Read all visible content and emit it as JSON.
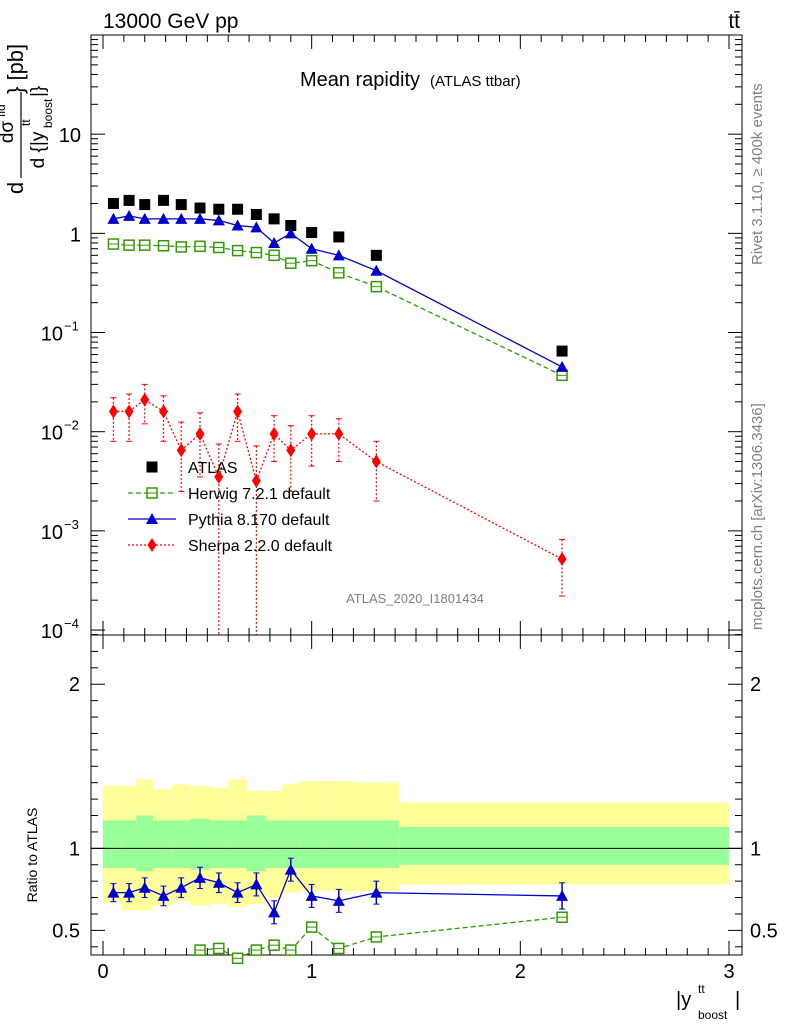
{
  "header": {
    "left": "13000 GeV pp",
    "right": "tt̄"
  },
  "side": {
    "top": "Rivet 3.1.10, ≥ 400k events",
    "bottom": "mcplots.cern.ch [arXiv:1306.3436]"
  },
  "chart_data": {
    "type": "scatter",
    "title": "Mean rapidity",
    "subtitle": "(ATLAS ttbar)",
    "analysis_id": "ATLAS_2020_I1801434",
    "xlabel": "|y_boost^tt|",
    "ylabel": "d dσ^fid / d{|y_boost^tt|} [pb]",
    "ratio_ylabel": "Ratio to ATLAS",
    "xlim": [
      -0.05,
      3.0
    ],
    "ylim": [
      7e-05,
      100
    ],
    "log_y": true,
    "ratio_ylim": [
      0.35,
      2.3
    ],
    "x_ticks": [
      "0",
      "1",
      "2",
      "3"
    ],
    "y_ticks": [
      "10^-4",
      "10^-3",
      "10^-2",
      "10^-1",
      "1",
      "10"
    ],
    "ratio_ticks": [
      "0.5",
      "1",
      "2"
    ],
    "legend_position": "lower-left",
    "x": [
      0.05,
      0.125,
      0.2,
      0.29,
      0.375,
      0.465,
      0.555,
      0.645,
      0.735,
      0.82,
      0.9,
      1.0,
      1.13,
      1.31,
      2.2
    ],
    "bin_edges": [
      0.0,
      0.09,
      0.16,
      0.24,
      0.33,
      0.42,
      0.51,
      0.6,
      0.69,
      0.78,
      0.86,
      0.94,
      1.06,
      1.2,
      1.42,
      3.0
    ],
    "ratio_band": {
      "stat_lo": [
        0.88,
        0.88,
        0.86,
        0.88,
        0.88,
        0.87,
        0.88,
        0.88,
        0.86,
        0.88,
        0.88,
        0.88,
        0.88,
        0.88,
        0.9
      ],
      "stat_hi": [
        1.17,
        1.17,
        1.2,
        1.17,
        1.17,
        1.18,
        1.17,
        1.17,
        1.2,
        1.17,
        1.17,
        1.17,
        1.17,
        1.17,
        1.13
      ],
      "total_lo": [
        0.67,
        0.62,
        0.62,
        0.65,
        0.68,
        0.65,
        0.66,
        0.64,
        0.66,
        0.7,
        0.73,
        0.74,
        0.74,
        0.74,
        0.78
      ],
      "total_hi": [
        1.38,
        1.38,
        1.42,
        1.36,
        1.39,
        1.38,
        1.37,
        1.42,
        1.35,
        1.35,
        1.39,
        1.41,
        1.41,
        1.4,
        1.28
      ]
    },
    "series": [
      {
        "name": "ATLAS",
        "color": "#000000",
        "marker": "square",
        "values": [
          2.0,
          2.15,
          1.95,
          2.15,
          1.95,
          1.8,
          1.75,
          1.75,
          1.55,
          1.4,
          1.2,
          1.02,
          0.92,
          0.6,
          0.065
        ]
      },
      {
        "name": "Herwig 7.2.1 default",
        "color": "#339900",
        "marker": "open-square",
        "line": "dashed",
        "values": [
          0.78,
          0.76,
          0.76,
          0.75,
          0.73,
          0.74,
          0.72,
          0.67,
          0.64,
          0.6,
          0.5,
          0.53,
          0.4,
          0.29,
          0.037
        ],
        "ratio": [
          null,
          null,
          null,
          null,
          null,
          0.38,
          0.39,
          0.33,
          0.38,
          0.41,
          0.38,
          0.52,
          0.39,
          0.46,
          0.58
        ],
        "ratio_err": [
          0,
          0,
          0,
          0,
          0,
          0.025,
          0.025,
          0.025,
          0.025,
          0.025,
          0.025,
          0.025,
          0.025,
          0.025,
          0.025
        ]
      },
      {
        "name": "Pythia 8.170 default",
        "color": "#0000cc",
        "marker": "triangle",
        "line": "solid",
        "values": [
          1.4,
          1.5,
          1.4,
          1.4,
          1.4,
          1.4,
          1.35,
          1.2,
          1.15,
          0.8,
          1.0,
          0.7,
          0.6,
          0.42,
          0.045
        ],
        "ratio": [
          0.73,
          0.73,
          0.76,
          0.71,
          0.76,
          0.82,
          0.79,
          0.73,
          0.78,
          0.61,
          0.87,
          0.71,
          0.68,
          0.73,
          0.71
        ],
        "ratio_err": [
          0.055,
          0.055,
          0.06,
          0.06,
          0.06,
          0.065,
          0.06,
          0.06,
          0.07,
          0.07,
          0.07,
          0.07,
          0.07,
          0.07,
          0.08
        ]
      },
      {
        "name": "Sherpa 2.2.0 default",
        "color": "#ff0000",
        "marker": "diamond",
        "line": "dotted",
        "values": [
          0.016,
          0.016,
          0.021,
          0.016,
          0.0065,
          0.0095,
          0.0035,
          0.016,
          0.0032,
          0.0095,
          0.0065,
          0.0095,
          0.0095,
          0.005,
          0.00052
        ],
        "err_lo": [
          0.008,
          0.008,
          0.009,
          0.008,
          0.004,
          0.006,
          0.0035,
          0.008,
          0.0032,
          0.0045,
          0.004,
          0.005,
          0.0045,
          0.003,
          0.0003
        ],
        "err_hi": [
          0.006,
          0.008,
          0.009,
          0.007,
          0.006,
          0.006,
          0.004,
          0.008,
          0.004,
          0.005,
          0.005,
          0.005,
          0.004,
          0.003,
          0.0003
        ]
      }
    ]
  }
}
